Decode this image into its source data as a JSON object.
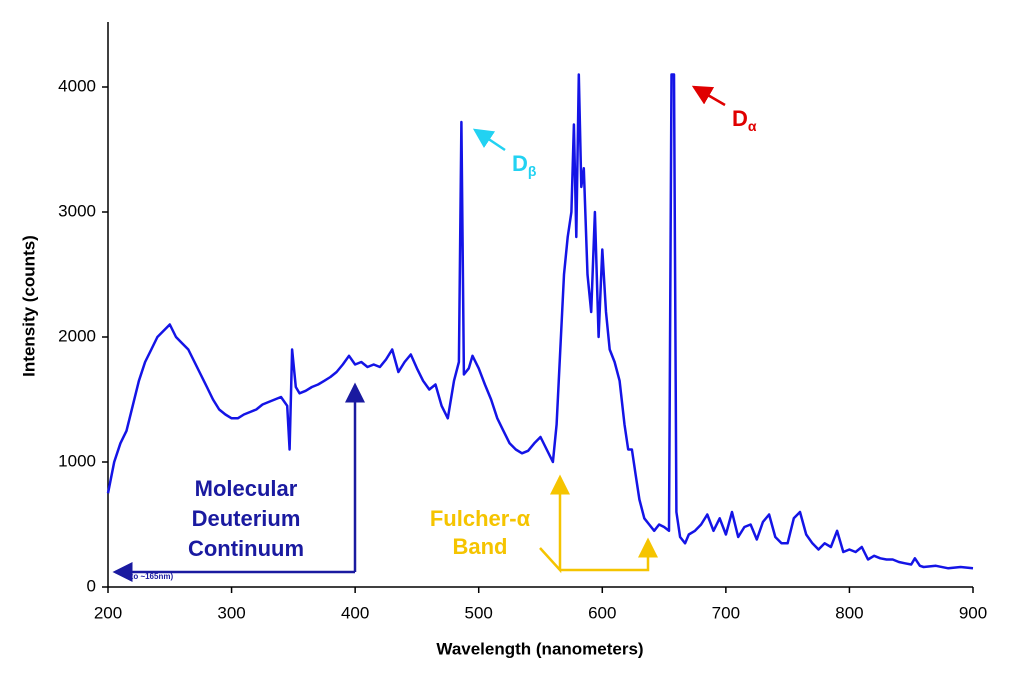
{
  "chart_data": {
    "type": "line",
    "xlabel": "Wavelength (nanometers)",
    "ylabel": "Intensity (counts)",
    "xlim": [
      200,
      900
    ],
    "ylim": [
      0,
      4500
    ],
    "xticks": [
      200,
      300,
      400,
      500,
      600,
      700,
      800,
      900
    ],
    "yticks": [
      0,
      1000,
      2000,
      3000,
      4000
    ],
    "x": [
      200,
      205,
      210,
      215,
      220,
      225,
      230,
      235,
      240,
      245,
      250,
      255,
      260,
      265,
      270,
      275,
      280,
      285,
      290,
      295,
      300,
      305,
      310,
      315,
      320,
      325,
      330,
      335,
      340,
      345,
      347,
      349,
      352,
      355,
      360,
      365,
      370,
      375,
      380,
      385,
      390,
      395,
      400,
      405,
      410,
      415,
      420,
      425,
      430,
      435,
      440,
      445,
      450,
      455,
      460,
      465,
      470,
      475,
      480,
      484,
      486,
      488,
      492,
      495,
      500,
      505,
      510,
      515,
      520,
      525,
      530,
      535,
      540,
      545,
      550,
      555,
      560,
      563,
      566,
      569,
      572,
      575,
      577,
      579,
      581,
      583,
      585,
      588,
      591,
      594,
      597,
      600,
      603,
      606,
      610,
      614,
      618,
      621,
      624,
      627,
      630,
      634,
      638,
      642,
      646,
      650,
      654,
      656,
      658,
      660,
      663,
      667,
      670,
      675,
      680,
      685,
      690,
      695,
      700,
      705,
      710,
      715,
      720,
      725,
      730,
      735,
      740,
      745,
      750,
      755,
      760,
      765,
      770,
      775,
      780,
      785,
      790,
      795,
      800,
      805,
      810,
      815,
      820,
      825,
      830,
      835,
      840,
      845,
      850,
      853,
      857,
      860,
      870,
      880,
      890,
      900
    ],
    "series": [
      {
        "color": "#1414e6",
        "values": [
          750,
          1000,
          1150,
          1250,
          1450,
          1650,
          1800,
          1900,
          2000,
          2050,
          2100,
          2000,
          1950,
          1900,
          1800,
          1700,
          1600,
          1500,
          1420,
          1380,
          1350,
          1350,
          1380,
          1400,
          1420,
          1460,
          1480,
          1500,
          1520,
          1450,
          1100,
          1900,
          1600,
          1550,
          1570,
          1600,
          1620,
          1650,
          1680,
          1720,
          1780,
          1850,
          1780,
          1800,
          1760,
          1780,
          1760,
          1820,
          1900,
          1720,
          1800,
          1860,
          1750,
          1650,
          1580,
          1620,
          1450,
          1350,
          1650,
          1800,
          3720,
          1700,
          1750,
          1850,
          1750,
          1620,
          1500,
          1350,
          1250,
          1150,
          1100,
          1070,
          1090,
          1150,
          1200,
          1100,
          1000,
          1300,
          1900,
          2500,
          2800,
          3000,
          3700,
          2800,
          4100,
          3200,
          3350,
          2500,
          2200,
          3000,
          2000,
          2700,
          2200,
          1900,
          1800,
          1650,
          1300,
          1100,
          1100,
          900,
          700,
          550,
          500,
          450,
          500,
          480,
          450,
          4100,
          4100,
          600,
          400,
          350,
          420,
          450,
          500,
          580,
          450,
          550,
          420,
          600,
          400,
          480,
          500,
          380,
          520,
          580,
          400,
          350,
          350,
          550,
          600,
          420,
          350,
          300,
          350,
          320,
          450,
          280,
          300,
          280,
          320,
          220,
          250,
          230,
          220,
          220,
          200,
          190,
          180,
          230,
          170,
          160,
          170,
          150,
          160,
          150
        ]
      }
    ],
    "annotations": {
      "continuum": {
        "lines": [
          "Molecular",
          "Deuterium",
          "Continuum"
        ],
        "color": "#1a1aa0",
        "note": "(to ~165nm)"
      },
      "fulcher": {
        "lines": [
          "Fulcher-α",
          "Band"
        ],
        "color": "#f5c400"
      },
      "d_beta": {
        "base": "D",
        "sub": "β",
        "color": "#22d2f2"
      },
      "d_alpha": {
        "base": "D",
        "sub": "α",
        "color": "#e00000"
      }
    }
  }
}
